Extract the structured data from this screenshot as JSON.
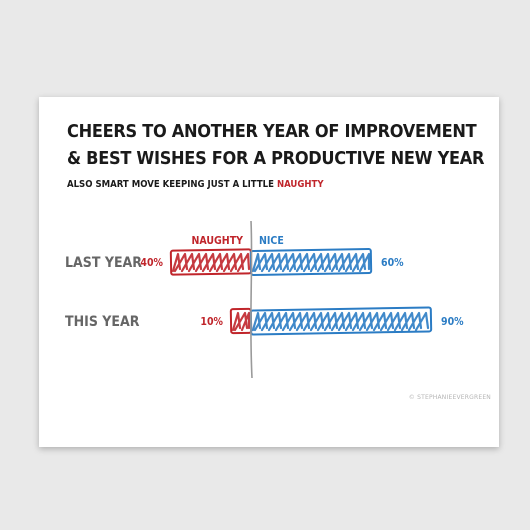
{
  "card": {
    "title_line1": "CHEERS TO ANOTHER YEAR OF IMPROVEMENT",
    "title_line2": "& BEST WISHES FOR A PRODUCTIVE NEW YEAR",
    "subtitle_prefix": "ALSO SMART MOVE KEEPING JUST A LITTLE ",
    "subtitle_highlight": "NAUGHTY",
    "credit": "© STEPHANIEEVERGREEN"
  },
  "colors": {
    "naughty": "#c0252b",
    "nice": "#2b7cc4",
    "divider": "#9a9a9a",
    "row_label": "#666666"
  },
  "chart_data": {
    "type": "bar",
    "orientation": "horizontal-diverging",
    "title": "CHEERS TO ANOTHER YEAR OF IMPROVEMENT & BEST WISHES FOR A PRODUCTIVE NEW YEAR",
    "subtitle": "ALSO SMART MOVE KEEPING JUST A LITTLE NAUGHTY",
    "categories": [
      "LAST YEAR",
      "THIS YEAR"
    ],
    "series": [
      {
        "name": "NAUGHTY",
        "values": [
          40,
          10
        ],
        "labels": [
          "40%",
          "10%"
        ]
      },
      {
        "name": "NICE",
        "values": [
          60,
          90
        ],
        "labels": [
          "60%",
          "90%"
        ]
      }
    ],
    "unit": "%",
    "xlim": [
      0,
      100
    ],
    "legend": "top-center",
    "grid": false
  }
}
